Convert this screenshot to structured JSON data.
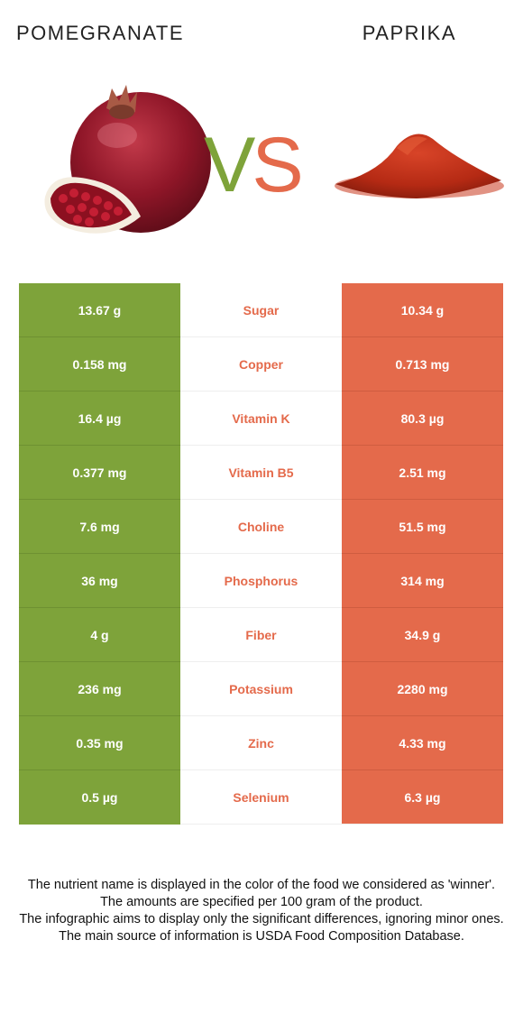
{
  "header": {
    "left_title": "POMEGRANATE",
    "right_title": "PAPRIKA",
    "vs_v": "V",
    "vs_s": "S"
  },
  "colors": {
    "left_food": "#7ea33a",
    "right_food": "#e46a4b"
  },
  "rows": [
    {
      "left": "13.67 g",
      "nutrient": "Sugar",
      "right": "10.34 g"
    },
    {
      "left": "0.158 mg",
      "nutrient": "Copper",
      "right": "0.713 mg"
    },
    {
      "left": "16.4 µg",
      "nutrient": "Vitamin K",
      "right": "80.3 µg"
    },
    {
      "left": "0.377 mg",
      "nutrient": "Vitamin B5",
      "right": "2.51 mg"
    },
    {
      "left": "7.6 mg",
      "nutrient": "Choline",
      "right": "51.5 mg"
    },
    {
      "left": "36 mg",
      "nutrient": "Phosphorus",
      "right": "314 mg"
    },
    {
      "left": "4 g",
      "nutrient": "Fiber",
      "right": "34.9 g"
    },
    {
      "left": "236 mg",
      "nutrient": "Potassium",
      "right": "2280 mg"
    },
    {
      "left": "0.35 mg",
      "nutrient": "Zinc",
      "right": "4.33 mg"
    },
    {
      "left": "0.5 µg",
      "nutrient": "Selenium",
      "right": "6.3 µg"
    }
  ],
  "footer": {
    "line1": "The nutrient name is displayed in the color of the food we considered as 'winner'.",
    "line2": "The amounts are specified per 100 gram of the product.",
    "line3": "The infographic aims to display only the significant differences, ignoring minor ones.",
    "line4": "The main source of information is USDA Food Composition Database."
  }
}
